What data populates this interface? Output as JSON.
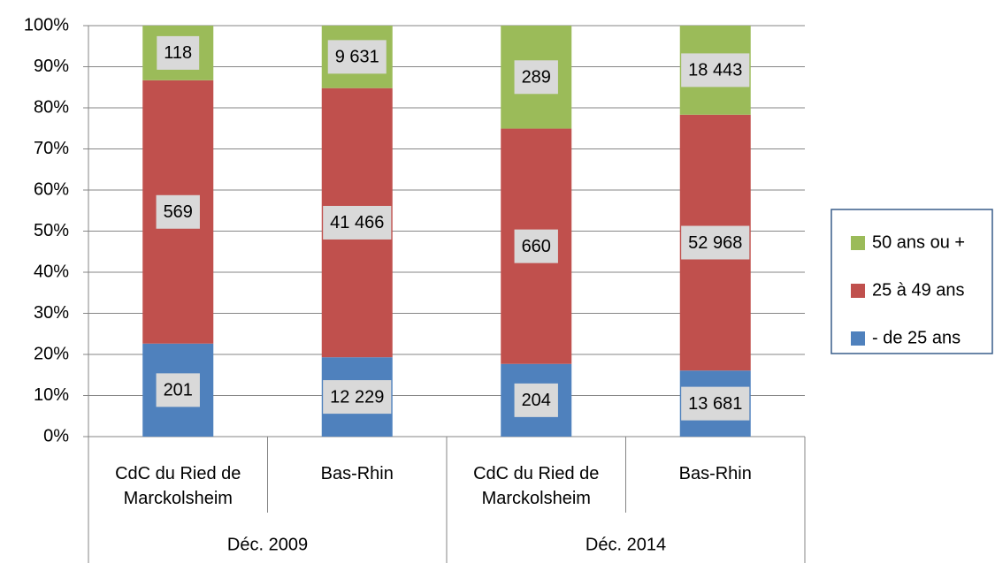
{
  "chart_data": {
    "type": "bar",
    "stacking": "percent",
    "categories": [
      "CdC du Ried de Marckolsheim",
      "Bas-Rhin",
      "CdC du Ried de Marckolsheim",
      "Bas-Rhin"
    ],
    "groups": [
      "Déc. 2009",
      "Déc. 2014"
    ],
    "series": [
      {
        "name": "- de 25 ans",
        "color": "#4f81bd",
        "values": [
          201,
          12229,
          204,
          13681
        ],
        "value_labels": [
          "201",
          "12 229",
          "204",
          "13 681"
        ]
      },
      {
        "name": "25 à 49 ans",
        "color": "#c0504d",
        "values": [
          569,
          41466,
          660,
          52968
        ],
        "value_labels": [
          "569",
          "41 466",
          "660",
          "52 968"
        ]
      },
      {
        "name": "50 ans ou +",
        "color": "#9bbb59",
        "values": [
          118,
          9631,
          289,
          18443
        ],
        "value_labels": [
          "118",
          "9 631",
          "289",
          "18 443"
        ]
      }
    ],
    "ylim": [
      0,
      100
    ],
    "yticks": [
      {
        "value": 0,
        "label": "0%"
      },
      {
        "value": 10,
        "label": "10%"
      },
      {
        "value": 20,
        "label": "20%"
      },
      {
        "value": 30,
        "label": "30%"
      },
      {
        "value": 40,
        "label": "40%"
      },
      {
        "value": 50,
        "label": "50%"
      },
      {
        "value": 60,
        "label": "60%"
      },
      {
        "value": 70,
        "label": "70%"
      },
      {
        "value": 80,
        "label": "80%"
      },
      {
        "value": 90,
        "label": "90%"
      },
      {
        "value": 100,
        "label": "100%"
      }
    ],
    "grid": true,
    "legend": "right"
  }
}
